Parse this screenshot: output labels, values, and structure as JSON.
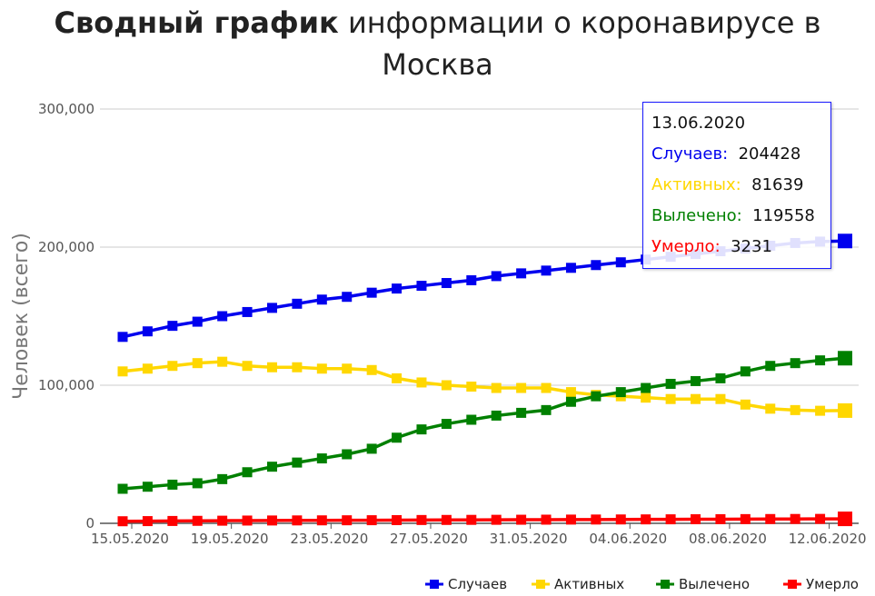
{
  "title": {
    "bold": "Сводный график",
    "rest": "информации о коронавирусе в Москва"
  },
  "chart_data": {
    "type": "line",
    "ylabel": "Человек (всего)",
    "ylim": [
      0,
      300000
    ],
    "yticks": [
      "0",
      "100,000",
      "200,000",
      "300,000"
    ],
    "grid": true,
    "legend_placement": "bottom-right",
    "x": [
      "15.05.2020",
      "16.05.2020",
      "17.05.2020",
      "18.05.2020",
      "19.05.2020",
      "20.05.2020",
      "21.05.2020",
      "22.05.2020",
      "23.05.2020",
      "24.05.2020",
      "25.05.2020",
      "26.05.2020",
      "27.05.2020",
      "28.05.2020",
      "29.05.2020",
      "30.05.2020",
      "31.05.2020",
      "01.06.2020",
      "02.06.2020",
      "03.06.2020",
      "04.06.2020",
      "05.06.2020",
      "06.06.2020",
      "07.06.2020",
      "08.06.2020",
      "09.06.2020",
      "10.06.2020",
      "11.06.2020",
      "12.06.2020",
      "13.06.2020"
    ],
    "xtick_labels": [
      "15.05.2020",
      "19.05.2020",
      "23.05.2020",
      "27.05.2020",
      "31.05.2020",
      "04.06.2020",
      "08.06.2020",
      "12.06.2020"
    ],
    "series": [
      {
        "name": "Случаев",
        "color": "#0000ee",
        "values": [
          135000,
          139000,
          143000,
          146000,
          150000,
          153000,
          156000,
          159000,
          162000,
          164000,
          167000,
          170000,
          172000,
          174000,
          176000,
          179000,
          181000,
          183000,
          185000,
          187000,
          189000,
          191000,
          193000,
          195000,
          197000,
          199000,
          201000,
          203000,
          204000,
          204428
        ]
      },
      {
        "name": "Активных",
        "color": "#ffd700",
        "values": [
          110000,
          112000,
          114000,
          116000,
          117000,
          114000,
          113000,
          113000,
          112000,
          112000,
          111000,
          105000,
          102000,
          100000,
          99000,
          98000,
          98000,
          98000,
          95000,
          93000,
          92000,
          91000,
          90000,
          90000,
          90000,
          86000,
          83000,
          82000,
          81500,
          81639
        ]
      },
      {
        "name": "Вылечено",
        "color": "#008000",
        "values": [
          25000,
          26500,
          28000,
          29000,
          32000,
          37000,
          41000,
          44000,
          47000,
          50000,
          54000,
          62000,
          68000,
          72000,
          75000,
          78000,
          80000,
          82000,
          88000,
          92000,
          95000,
          98000,
          101000,
          103000,
          105000,
          110000,
          114000,
          116000,
          118000,
          119558
        ]
      },
      {
        "name": "Умерло",
        "color": "#ff0000",
        "values": [
          1500,
          1600,
          1700,
          1800,
          1900,
          2000,
          2050,
          2100,
          2150,
          2200,
          2250,
          2300,
          2400,
          2450,
          2500,
          2550,
          2600,
          2650,
          2700,
          2750,
          2800,
          2850,
          2900,
          2950,
          3000,
          3050,
          3100,
          3150,
          3200,
          3231
        ]
      }
    ]
  },
  "tooltip": {
    "date": "13.06.2020",
    "rows": [
      {
        "label": "Случаев:",
        "value": "204428",
        "color": "#0000ee"
      },
      {
        "label": "Активных:",
        "value": "81639",
        "color": "#ffd700"
      },
      {
        "label": "Вылечено:",
        "value": "119558",
        "color": "#008000"
      },
      {
        "label": "Умерло:",
        "value": "3231",
        "color": "#ff0000"
      }
    ]
  }
}
